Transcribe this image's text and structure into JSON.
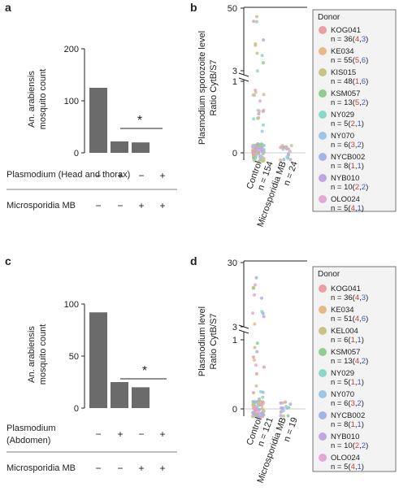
{
  "chart_data": [
    {
      "panel": "a",
      "type": "bar",
      "ylabel": [
        "An. arabiensis",
        "mosquito count"
      ],
      "ylim": [
        0,
        200
      ],
      "yticks": [
        "0",
        "100",
        "200"
      ],
      "values": [
        125,
        22,
        20
      ],
      "row_labels": [
        "Plasmodium (Head and thorax)",
        "Microsporidia MB"
      ],
      "row1_signs": [
        "−",
        "+",
        "−",
        "+"
      ],
      "row2_signs": [
        "−",
        "−",
        "+",
        "+"
      ],
      "significance": "*"
    },
    {
      "panel": "b",
      "type": "scatter",
      "ylabel": [
        "Plasmodium sporozoite level",
        "Ratio CytB/S7"
      ],
      "yticks_upper": [
        "3",
        "50"
      ],
      "yticks_lower": [
        "0",
        "1"
      ],
      "categories": [
        "Control",
        "Microsporidia MB"
      ],
      "n_labels": [
        "n = 154",
        "n = 24"
      ],
      "legend_title": "Donor",
      "legend": [
        {
          "name": "KOG041",
          "n": "n = 36(",
          "a": "4",
          "b": "3",
          "color": "#e8a0a0"
        },
        {
          "name": "KE034",
          "n": "n = 55(",
          "a": "5",
          "b": "6",
          "color": "#e8b887"
        },
        {
          "name": "KIS015",
          "n": "n = 48(",
          "a": "1",
          "b": "6",
          "color": "#c9c283"
        },
        {
          "name": "KSM057",
          "n": "n = 13(",
          "a": "5",
          "b": "2",
          "color": "#8fce8f"
        },
        {
          "name": "NY029",
          "n": "n = 5(",
          "a": "2",
          "b": "1",
          "color": "#8ed6c8"
        },
        {
          "name": "NY070",
          "n": "n = 6(",
          "a": "3",
          "b": "2",
          "color": "#9cc8e6"
        },
        {
          "name": "NYCB002",
          "n": "n = 8(",
          "a": "1",
          "b": "1",
          "color": "#a6b2ea"
        },
        {
          "name": "NYB010",
          "n": "n = 10(",
          "a": "2",
          "b": "2",
          "color": "#c0a6e4"
        },
        {
          "name": "OLO024",
          "n": "n = 5(",
          "a": "4",
          "b": "1",
          "color": "#e6a6d6"
        }
      ]
    },
    {
      "panel": "c",
      "type": "bar",
      "ylabel": [
        "An. arabiensis",
        "mosquito count"
      ],
      "ylim": [
        0,
        100
      ],
      "yticks": [
        "0",
        "50",
        "100"
      ],
      "values": [
        92,
        25,
        20
      ],
      "row_labels": [
        "Plasmodium",
        "(Abdomen)",
        "Microsporidia MB"
      ],
      "row1_signs": [
        "−",
        "+",
        "−",
        "+"
      ],
      "row2_signs": [
        "−",
        "−",
        "+",
        "+"
      ],
      "significance": "*"
    },
    {
      "panel": "d",
      "type": "scatter",
      "ylabel": [
        "Plasmodium level",
        "Ratio CytB/S7"
      ],
      "yticks_upper": [
        "3",
        "30"
      ],
      "yticks_lower": [
        "0",
        "1"
      ],
      "categories": [
        "Control",
        "Microsporidia MB"
      ],
      "n_labels": [
        "n = 121",
        "n = 19"
      ],
      "legend_title": "Donor",
      "legend": [
        {
          "name": "KOG041",
          "n": "n = 36(",
          "a": "4",
          "b": "3",
          "color": "#e8a0a0"
        },
        {
          "name": "KE034",
          "n": "n = 51(",
          "a": "4",
          "b": "6",
          "color": "#e8b887"
        },
        {
          "name": "KEL004",
          "n": "n = 6(",
          "a": "1",
          "b": "1",
          "color": "#c9c283"
        },
        {
          "name": "KSM057",
          "n": "n = 13(",
          "a": "4",
          "b": "2",
          "color": "#8fce8f"
        },
        {
          "name": "NY029",
          "n": "n = 5(",
          "a": "1",
          "b": "1",
          "color": "#8ed6c8"
        },
        {
          "name": "NY070",
          "n": "n = 6(",
          "a": "3",
          "b": "2",
          "color": "#9cc8e6"
        },
        {
          "name": "NYCB002",
          "n": "n = 8(",
          "a": "1",
          "b": "1",
          "color": "#a6b2ea"
        },
        {
          "name": "NYB010",
          "n": "n = 10(",
          "a": "2",
          "b": "2",
          "color": "#c0a6e4"
        },
        {
          "name": "OLO024",
          "n": "n = 5(",
          "a": "4",
          "b": "1",
          "color": "#e6a6d6"
        }
      ]
    }
  ]
}
